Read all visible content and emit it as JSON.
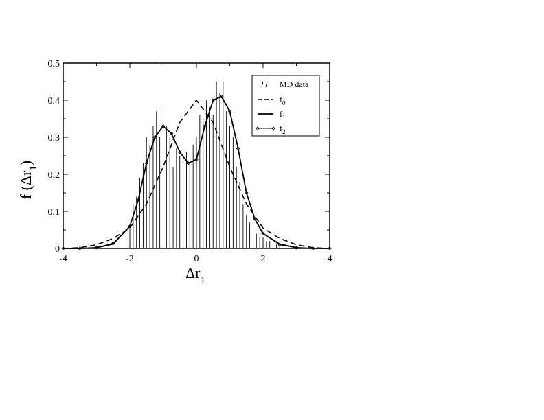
{
  "chart_data": {
    "type": "line",
    "xlabel": {
      "main": "Δr",
      "sub": "1"
    },
    "ylabel": {
      "main": "f (Δr",
      "sub": "1",
      "end": ")"
    },
    "xlim": [
      -4,
      4
    ],
    "ylim": [
      0,
      0.5
    ],
    "xticks": [
      -4,
      -2,
      0,
      2,
      4
    ],
    "yticks": [
      0,
      0.1,
      0.2,
      0.3,
      0.4,
      0.5
    ],
    "xtick_labels": [
      "-4",
      "-2",
      "0",
      "2",
      "4"
    ],
    "ytick_labels": [
      "0",
      "0.1",
      "0.2",
      "0.3",
      "0.4",
      "0.5"
    ],
    "grid": false,
    "legend_position": "top-right",
    "legend": [
      {
        "key": "md",
        "label": "MD data",
        "sub": ""
      },
      {
        "key": "f0",
        "label": "f",
        "sub": "0"
      },
      {
        "key": "f1",
        "label": "f",
        "sub": "1"
      },
      {
        "key": "f2",
        "label": "f",
        "sub": "2"
      }
    ],
    "histogram": {
      "name": "MD data",
      "x": [
        -2.0,
        -1.9,
        -1.8,
        -1.7,
        -1.6,
        -1.5,
        -1.4,
        -1.3,
        -1.2,
        -1.1,
        -1.0,
        -0.9,
        -0.8,
        -0.7,
        -0.6,
        -0.5,
        -0.4,
        -0.3,
        -0.2,
        -0.1,
        0.0,
        0.1,
        0.2,
        0.3,
        0.4,
        0.5,
        0.6,
        0.7,
        0.8,
        0.9,
        1.0,
        1.1,
        1.2,
        1.3,
        1.4,
        1.5,
        1.6,
        1.7,
        1.8,
        1.9,
        2.0,
        2.1,
        2.2,
        2.3,
        2.4,
        2.5
      ],
      "values": [
        0.06,
        0.12,
        0.14,
        0.19,
        0.23,
        0.3,
        0.28,
        0.33,
        0.37,
        0.3,
        0.38,
        0.33,
        0.3,
        0.22,
        0.27,
        0.25,
        0.24,
        0.26,
        0.23,
        0.28,
        0.3,
        0.36,
        0.35,
        0.4,
        0.38,
        0.36,
        0.45,
        0.42,
        0.45,
        0.37,
        0.33,
        0.3,
        0.22,
        0.18,
        0.12,
        0.09,
        0.07,
        0.05,
        0.04,
        0.03,
        0.03,
        0.02,
        0.02,
        0.01,
        0.01,
        0.01
      ]
    },
    "series": [
      {
        "key": "f0",
        "x": [
          -4,
          -3.5,
          -3,
          -2.5,
          -2,
          -1.5,
          -1,
          -0.5,
          0,
          0.5,
          1,
          1.5,
          2,
          2.5,
          3,
          3.5,
          4
        ],
        "y": [
          0.0,
          0.002,
          0.01,
          0.027,
          0.055,
          0.12,
          0.22,
          0.34,
          0.4,
          0.34,
          0.22,
          0.12,
          0.055,
          0.027,
          0.01,
          0.002,
          0.0
        ]
      },
      {
        "key": "f1",
        "x": [
          -4,
          -3.5,
          -3,
          -2.5,
          -2,
          -1.75,
          -1.5,
          -1.25,
          -1,
          -0.75,
          -0.5,
          -0.25,
          0,
          0.25,
          0.5,
          0.75,
          1,
          1.25,
          1.5,
          1.75,
          2,
          2.5,
          3,
          3.5,
          4
        ],
        "y": [
          0.0,
          0.0,
          0.002,
          0.012,
          0.06,
          0.13,
          0.23,
          0.3,
          0.33,
          0.31,
          0.26,
          0.23,
          0.24,
          0.33,
          0.4,
          0.41,
          0.37,
          0.27,
          0.15,
          0.08,
          0.04,
          0.012,
          0.002,
          0.0,
          0.0
        ]
      },
      {
        "key": "f2",
        "x": [
          -4,
          -3.5,
          -3,
          -2.5,
          -2,
          -1.75,
          -1.5,
          -1.25,
          -1,
          -0.75,
          -0.5,
          -0.25,
          0,
          0.25,
          0.5,
          0.75,
          1,
          1.25,
          1.5,
          1.75,
          2,
          2.5,
          3,
          3.5,
          4
        ],
        "y": [
          0.0,
          0.0,
          0.002,
          0.014,
          0.06,
          0.13,
          0.23,
          0.3,
          0.33,
          0.31,
          0.26,
          0.23,
          0.24,
          0.33,
          0.4,
          0.41,
          0.37,
          0.27,
          0.15,
          0.08,
          0.04,
          0.01,
          0.002,
          0.0,
          0.0
        ]
      }
    ]
  }
}
